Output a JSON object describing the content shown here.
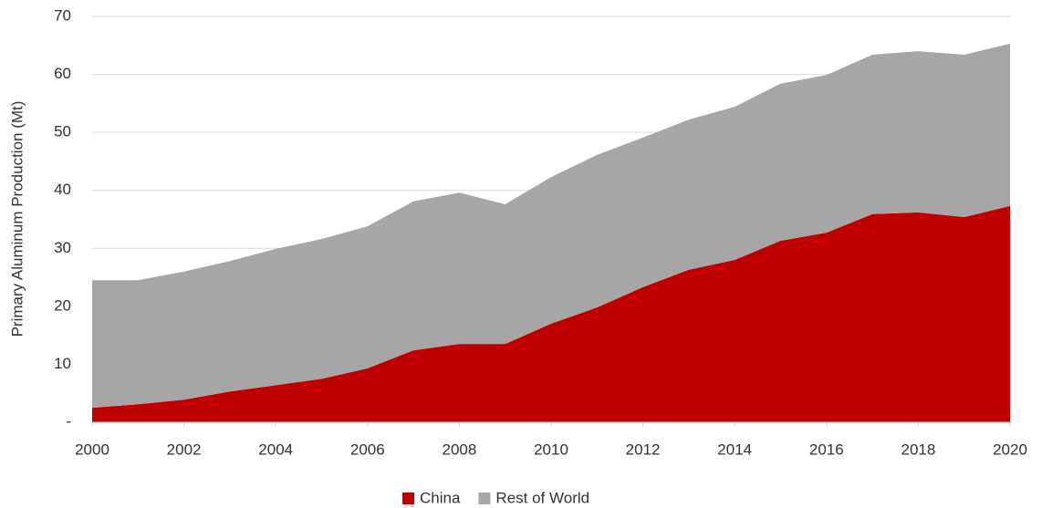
{
  "chart_data": {
    "type": "stacked_area",
    "y_label": "Primary Aluminum Production (Mt)",
    "x": [
      2000,
      2001,
      2002,
      2003,
      2004,
      2005,
      2006,
      2007,
      2008,
      2009,
      2010,
      2011,
      2012,
      2013,
      2014,
      2015,
      2016,
      2017,
      2018,
      2019,
      2020
    ],
    "series": [
      {
        "name": "China",
        "color": "#c00000",
        "values": [
          2.5,
          3.1,
          3.9,
          5.3,
          6.4,
          7.5,
          9.3,
          12.4,
          13.5,
          13.5,
          17.0,
          19.8,
          23.3,
          26.3,
          28.0,
          31.3,
          32.7,
          35.9,
          36.2,
          35.4,
          37.3
        ]
      },
      {
        "name": "Rest of World",
        "color": "#a6a6a6",
        "values": [
          22.0,
          21.4,
          22.1,
          22.5,
          23.5,
          24.1,
          24.5,
          25.7,
          26.1,
          24.1,
          25.3,
          26.3,
          25.8,
          25.9,
          26.4,
          27.1,
          27.2,
          27.5,
          27.8,
          28.0,
          28.0
        ]
      }
    ],
    "xlim": [
      2000,
      2020
    ],
    "xticks": [
      2000,
      2002,
      2004,
      2006,
      2008,
      2010,
      2012,
      2014,
      2016,
      2018,
      2020
    ],
    "ylim": [
      0,
      70
    ],
    "yticks": [
      {
        "value": 0,
        "label": "-"
      },
      10,
      20,
      30,
      40,
      50,
      60,
      70
    ],
    "grid": true,
    "legend": "bottom"
  }
}
